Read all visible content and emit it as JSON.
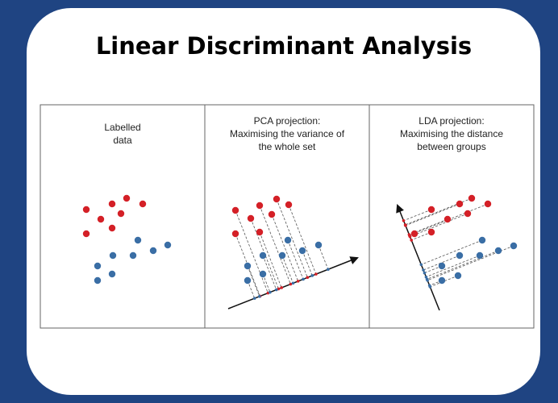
{
  "title": "Linear Discriminant Analysis",
  "panels": [
    {
      "caption": [
        "Labelled",
        "data"
      ]
    },
    {
      "caption": [
        "PCA projection:",
        "Maximising the variance of",
        "the whole set"
      ]
    },
    {
      "caption": [
        "LDA projection:",
        "Maximising the distance",
        "between groups"
      ]
    }
  ]
}
